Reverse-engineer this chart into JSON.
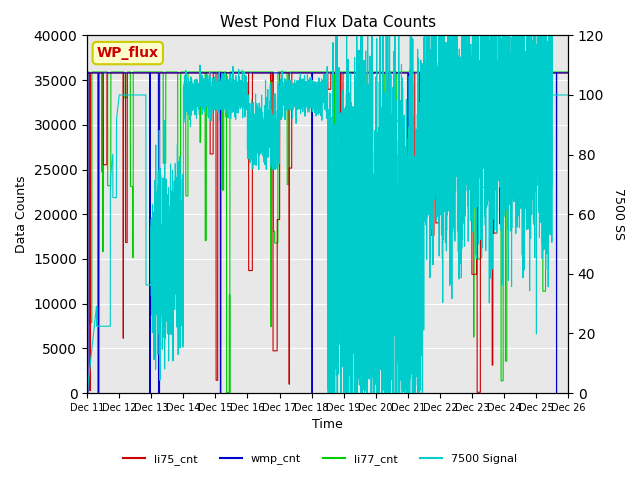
{
  "title": "West Pond Flux Data Counts",
  "xlabel": "Time",
  "ylabel_left": "Data Counts",
  "ylabel_right": "7500 SS",
  "annotation_text": "WP_flux",
  "annotation_bg": "#ffffcc",
  "annotation_border": "#cccc00",
  "annotation_text_color": "#cc0000",
  "background_color": "#e8e8e8",
  "ylim_left": [
    0,
    40000
  ],
  "ylim_right": [
    0,
    120
  ],
  "yticks_left": [
    0,
    5000,
    10000,
    15000,
    20000,
    25000,
    30000,
    35000,
    40000
  ],
  "yticks_right": [
    0,
    20,
    40,
    60,
    80,
    100,
    120
  ],
  "xtick_labels": [
    "Dec 11",
    "Dec 12",
    "Dec 13",
    "Dec 14",
    "Dec 15",
    "Dec 16",
    "Dec 17",
    "Dec 18",
    "Dec 19",
    "Dec 20",
    "Dec 21",
    "Dec 22",
    "Dec 23",
    "Dec 24",
    "Dec 25",
    "Dec 26"
  ],
  "series": {
    "li75_cnt": {
      "color": "#cc0000",
      "zorder": 3
    },
    "wmp_cnt": {
      "color": "#0000cc",
      "zorder": 4
    },
    "li77_cnt": {
      "color": "#00cc00",
      "zorder": 2
    },
    "7500": {
      "color": "#00cccc",
      "zorder": 1
    }
  },
  "legend_labels": [
    "li75_cnt",
    "wmp_cnt",
    "li77_cnt",
    "7500 Signal"
  ],
  "legend_colors": [
    "#cc0000",
    "#0000cc",
    "#00cc00",
    "#00cccc"
  ]
}
